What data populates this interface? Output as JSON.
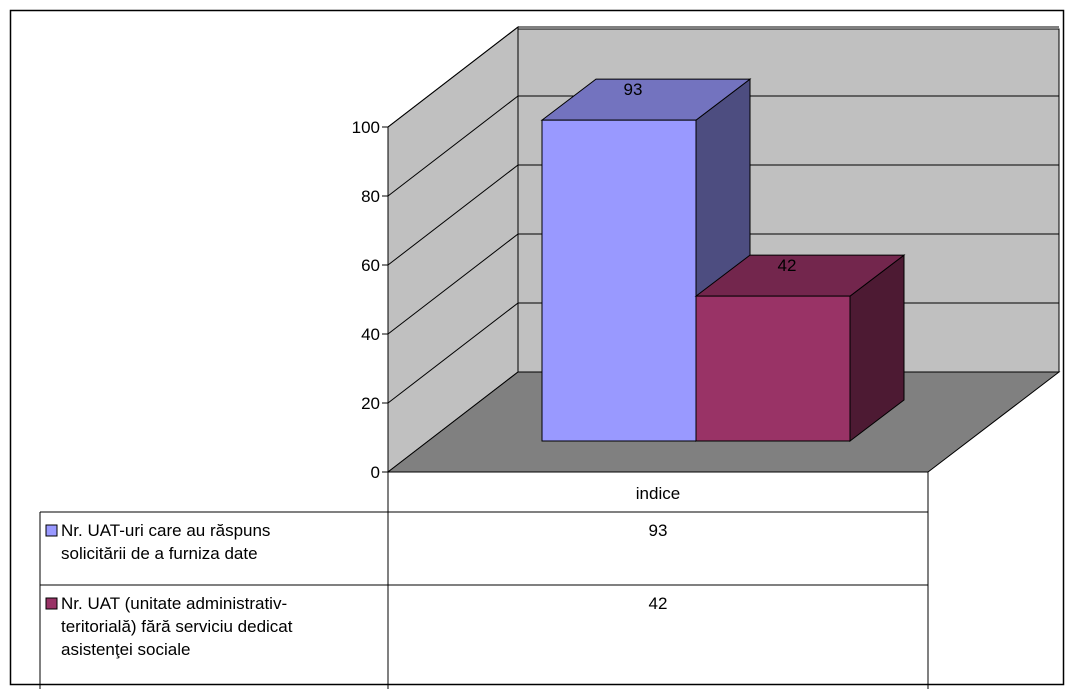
{
  "chart_data": {
    "type": "bar",
    "categories": [
      "indice"
    ],
    "series": [
      {
        "name": "Nr. UAT-uri care au răspuns solicitării de a furniza date",
        "values": [
          93
        ],
        "color": "#9999ff"
      },
      {
        "name": "Nr. UAT (unitate administrativ-teritorială) fără serviciu dedicat asistenţei sociale",
        "values": [
          42
        ],
        "color": "#993366"
      }
    ],
    "yticks": [
      0,
      20,
      40,
      60,
      80,
      100
    ],
    "ylim": [
      0,
      100
    ],
    "grid": true,
    "legend": "table",
    "table": {
      "column_header": "indice",
      "rows": [
        {
          "label_lines": [
            "Nr. UAT-uri care au răspuns",
            "solicitării de a furniza date"
          ],
          "value": "93"
        },
        {
          "label_lines": [
            "Nr. UAT (unitate administrativ-",
            "teritorială) fără serviciu dedicat",
            "asistenţei sociale"
          ],
          "value": "42"
        }
      ]
    },
    "colors": {
      "wall": "#c0c0c0",
      "floor": "#808080"
    }
  }
}
